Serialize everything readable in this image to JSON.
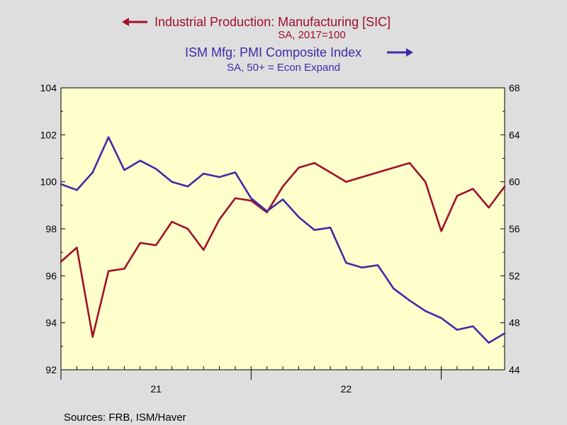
{
  "chart_data": {
    "type": "line",
    "legend": {
      "left_series_title": "Industrial Production: Manufacturing [SIC]",
      "left_series_subtitle": "SA, 2017=100",
      "right_series_title": "ISM Mfg: PMI Composite Index",
      "right_series_subtitle": "SA, 50+ = Econ Expand"
    },
    "source": "Sources:  FRB, ISM/Haver",
    "x_tick_labels": [
      {
        "label": "21",
        "month_index": 6
      },
      {
        "label": "22",
        "month_index": 18
      }
    ],
    "y_left": {
      "min": 92,
      "max": 104,
      "ticks": [
        "92",
        "94",
        "96",
        "98",
        "100",
        "102",
        "104"
      ]
    },
    "y_right": {
      "min": 44,
      "max": 68,
      "ticks": [
        "44",
        "48",
        "52",
        "56",
        "60",
        "64",
        "68"
      ]
    },
    "series": [
      {
        "name": "Industrial Production: Manufacturing [SIC]",
        "axis": "left",
        "color": "#a0102a",
        "values": [
          96.6,
          97.2,
          93.4,
          96.2,
          96.3,
          97.4,
          97.3,
          98.3,
          98.0,
          97.1,
          98.4,
          99.3,
          99.2,
          98.7,
          99.8,
          100.6,
          100.8,
          100.4,
          100.0,
          100.2,
          100.4,
          100.6,
          100.8,
          100.0,
          97.9,
          99.4,
          99.7,
          98.9,
          99.8
        ]
      },
      {
        "name": "ISM Mfg: PMI Composite Index",
        "axis": "right",
        "color": "#3f2aa8",
        "values": [
          59.8,
          59.3,
          60.8,
          63.8,
          61.0,
          61.8,
          61.1,
          60.0,
          59.6,
          60.7,
          60.4,
          60.8,
          58.6,
          57.5,
          58.5,
          57.0,
          55.9,
          56.1,
          53.1,
          52.7,
          52.9,
          50.9,
          49.9,
          49.0,
          48.4,
          47.4,
          47.7,
          46.3,
          47.1
        ]
      }
    ]
  }
}
